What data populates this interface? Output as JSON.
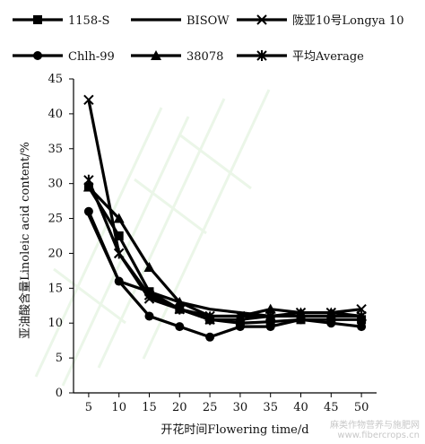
{
  "chart_data": {
    "type": "line",
    "x": [
      5,
      10,
      15,
      20,
      25,
      30,
      35,
      40,
      45,
      50
    ],
    "xlabel": "开花时间Flowering time/d",
    "ylabel": "亚油酸含量Linoleic acid content/%",
    "ylim": [
      0,
      45
    ],
    "yticks": [
      0,
      5,
      10,
      15,
      20,
      25,
      30,
      35,
      40,
      45
    ],
    "xticks": [
      5,
      10,
      15,
      20,
      25,
      30,
      35,
      40,
      45,
      50
    ],
    "legend_position": "top",
    "series": [
      {
        "name": "1158-S",
        "marker": "square",
        "values": [
          29.5,
          22.5,
          14.5,
          12.0,
          10.5,
          10.0,
          10.2,
          10.5,
          10.5,
          10.5
        ]
      },
      {
        "name": "BISOW",
        "marker": "none",
        "values": [
          25.5,
          16.0,
          14.5,
          13.0,
          12.0,
          11.5,
          11.0,
          11.0,
          11.0,
          11.0
        ]
      },
      {
        "name": "陇亚10号Longya 10",
        "marker": "x",
        "values": [
          42.0,
          20.0,
          13.5,
          12.0,
          11.0,
          11.0,
          11.0,
          11.5,
          11.5,
          12.0
        ]
      },
      {
        "name": "Chlh-99",
        "marker": "circle",
        "values": [
          26.0,
          16.0,
          11.0,
          9.5,
          8.0,
          9.5,
          9.5,
          10.5,
          10.0,
          9.5
        ]
      },
      {
        "name": "38078",
        "marker": "triangle",
        "values": [
          29.5,
          25.0,
          18.0,
          13.0,
          11.0,
          11.0,
          12.0,
          11.5,
          11.5,
          11.0
        ]
      },
      {
        "name": "平均Average",
        "marker": "star",
        "values": [
          30.5,
          20.0,
          14.0,
          12.0,
          10.5,
          10.5,
          11.0,
          11.0,
          11.0,
          11.0
        ]
      }
    ]
  },
  "watermark": {
    "line1": "麻类作物营养与施肥网",
    "line2": "www.fibercrops.cn"
  }
}
